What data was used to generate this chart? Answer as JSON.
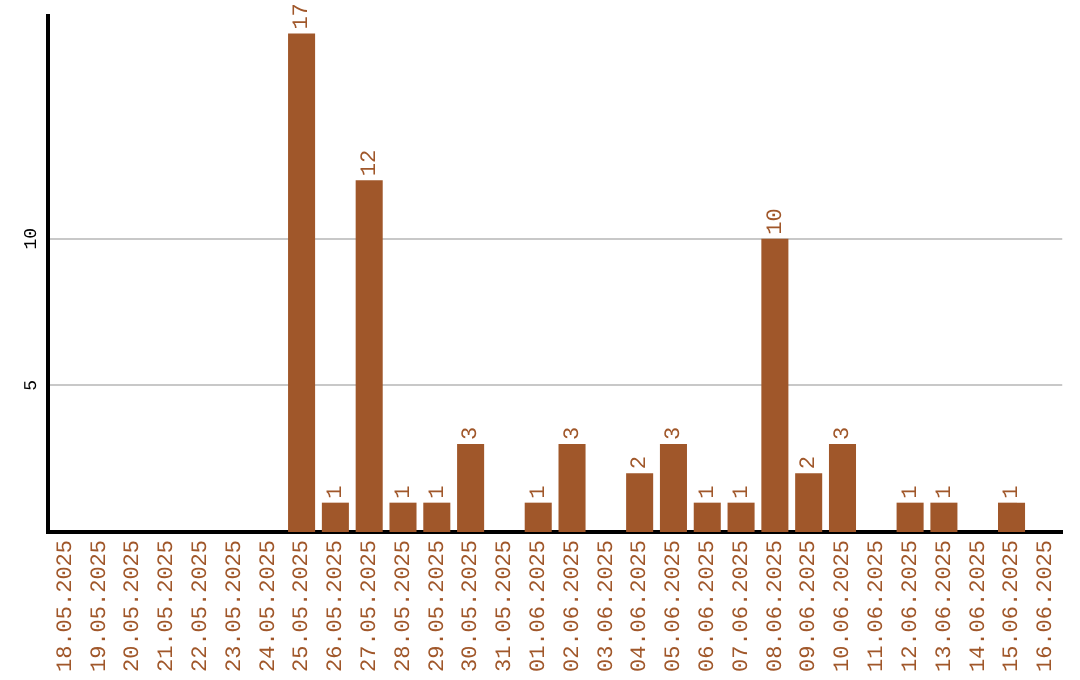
{
  "chart_data": {
    "type": "bar",
    "categories": [
      "18.05.2025",
      "19.05.2025",
      "20.05.2025",
      "21.05.2025",
      "22.05.2025",
      "23.05.2025",
      "24.05.2025",
      "25.05.2025",
      "26.05.2025",
      "27.05.2025",
      "28.05.2025",
      "29.05.2025",
      "30.05.2025",
      "31.05.2025",
      "01.06.2025",
      "02.06.2025",
      "03.06.2025",
      "04.06.2025",
      "05.06.2025",
      "06.06.2025",
      "07.06.2025",
      "08.06.2025",
      "09.06.2025",
      "10.06.2025",
      "11.06.2025",
      "12.06.2025",
      "13.06.2025",
      "14.06.2025",
      "15.06.2025",
      "16.06.2025"
    ],
    "values": [
      null,
      null,
      null,
      null,
      null,
      null,
      null,
      17,
      1,
      12,
      1,
      1,
      3,
      null,
      1,
      3,
      null,
      2,
      3,
      1,
      1,
      10,
      2,
      3,
      null,
      1,
      1,
      null,
      1,
      null
    ],
    "color": "#a0572a",
    "ylim": [
      0,
      17.6
    ],
    "yticks": [
      5,
      10
    ],
    "grid": "y",
    "legend": false,
    "data_labels": true
  }
}
